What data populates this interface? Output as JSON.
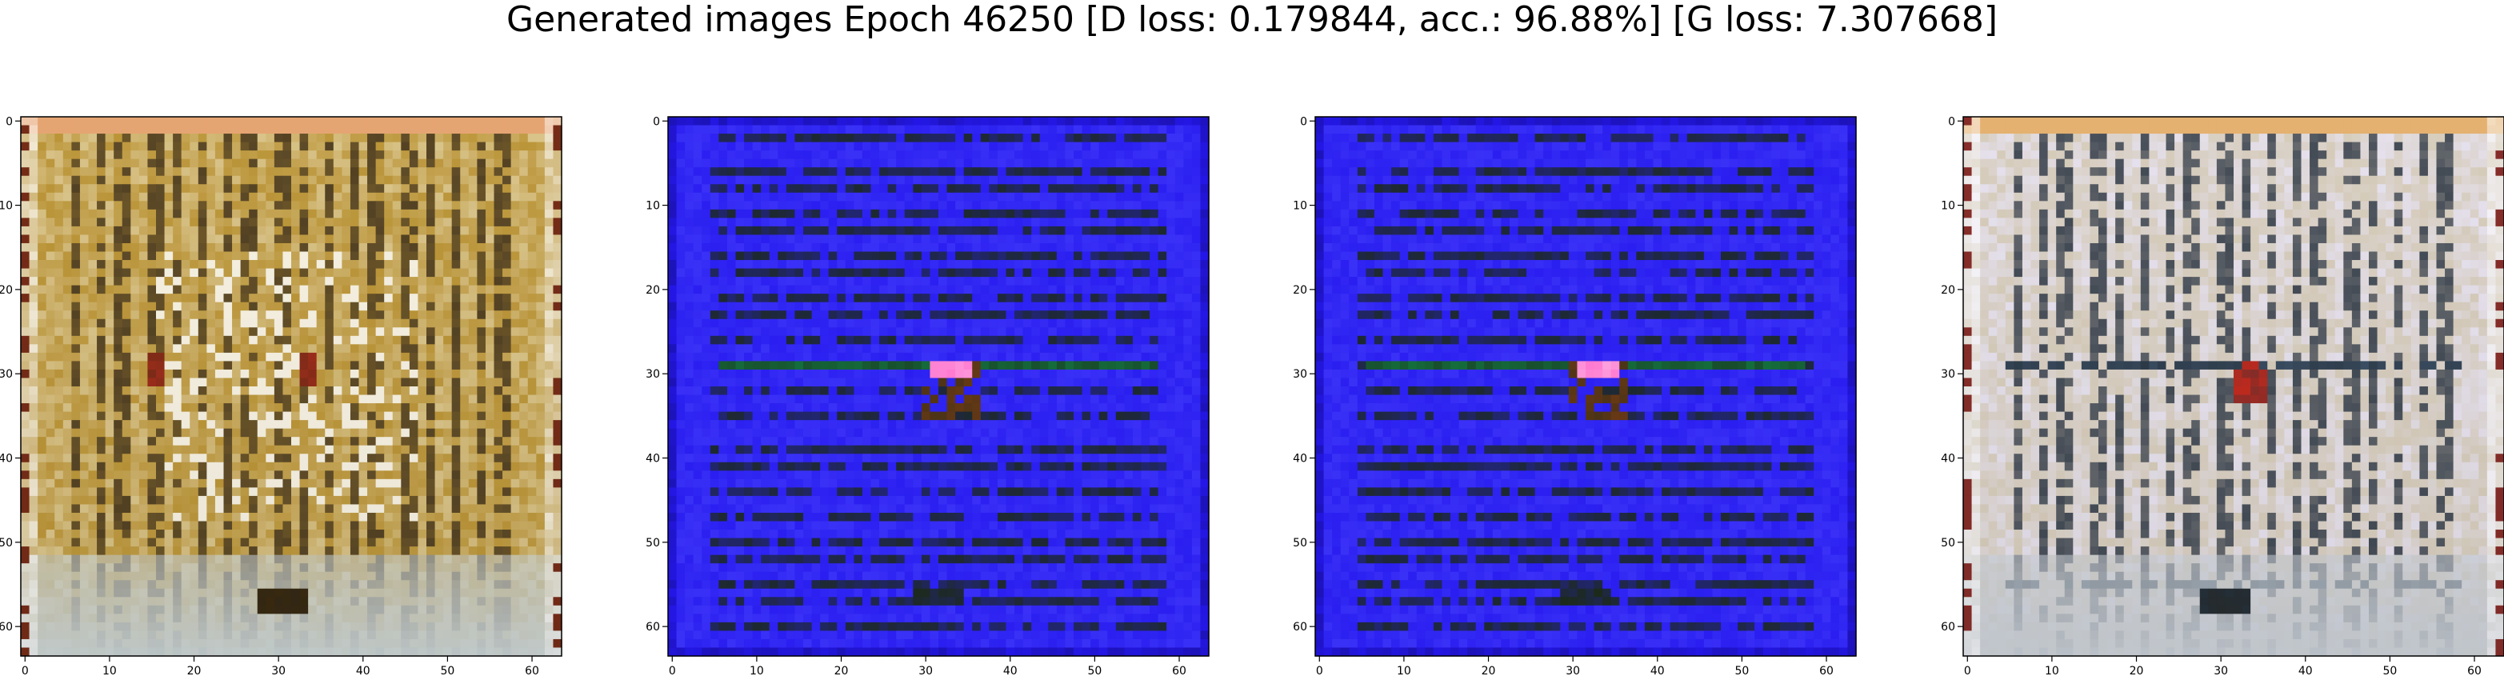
{
  "figure": {
    "title": "Generated images Epoch 46250 [D loss: 0.179844, acc.: 96.88%] [G loss: 7.307668]"
  },
  "axes_ticks": {
    "x": [
      "0",
      "10",
      "20",
      "30",
      "40",
      "50",
      "60"
    ],
    "y": [
      "0",
      "10",
      "20",
      "30",
      "40",
      "50",
      "60"
    ],
    "xlim": [
      -0.5,
      63.5
    ],
    "ylim": [
      63.5,
      -0.5
    ]
  },
  "panels": [
    {
      "name": "generated-image-1",
      "palette": {
        "base": "#b68d2a",
        "light": "#e9dcb4",
        "dark": "#3b2a10",
        "accent": "#9b2d1c",
        "edge": "#f2e8d5",
        "bottom": "#c9d3d6"
      }
    },
    {
      "name": "generated-image-2",
      "palette": {
        "base": "#2a1ff0",
        "light": "#4b44ff",
        "dark": "#1c2a1a",
        "accent": "#ff79d0",
        "edge": "#2417e6",
        "bottom": "#2a1ff0"
      }
    },
    {
      "name": "generated-image-3",
      "palette": {
        "base": "#2a1ff0",
        "light": "#4b44ff",
        "dark": "#1c2a1a",
        "accent": "#ff79d0",
        "edge": "#2417e6",
        "bottom": "#2a1ff0"
      }
    },
    {
      "name": "generated-image-4",
      "palette": {
        "base": "#cdbf9b",
        "light": "#e7e3f2",
        "dark": "#26303a",
        "accent": "#c62b1e",
        "edge": "#e8c98a",
        "bottom": "#c9cfd6"
      }
    }
  ]
}
